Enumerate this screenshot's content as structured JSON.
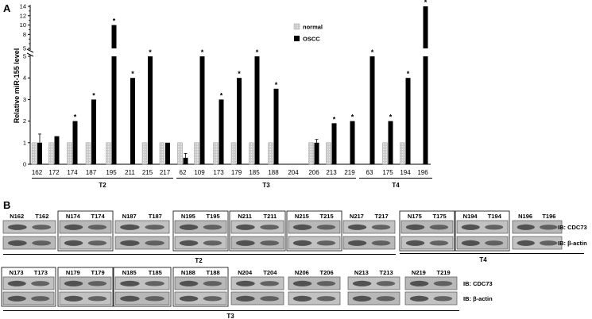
{
  "panel_a_label": "A",
  "panel_b_label": "B",
  "chart_data": {
    "type": "bar",
    "title": "",
    "ylabel": "Relative miR-155 level",
    "xlabel": "",
    "broken_axis": true,
    "y_lower_ticks": [
      0,
      1,
      2,
      3,
      4,
      5
    ],
    "y_upper_ticks": [
      5,
      8,
      10,
      12,
      14
    ],
    "legend": {
      "placement": "top-right",
      "entries": [
        "normal",
        "OSCC"
      ]
    },
    "colors": {
      "normal": "#d4d4d4",
      "OSCC": "#000000"
    },
    "categories": [
      "162",
      "172",
      "174",
      "187",
      "195",
      "211",
      "215",
      "217",
      "62",
      "109",
      "173",
      "179",
      "185",
      "188",
      "204",
      "206",
      "213",
      "219",
      "63",
      "175",
      "194",
      "196"
    ],
    "groups": [
      {
        "name": "T2",
        "from": 0,
        "to": 7
      },
      {
        "name": "T3",
        "from": 8,
        "to": 17
      },
      {
        "name": "T4",
        "from": 18,
        "to": 21
      }
    ],
    "series": [
      {
        "name": "normal",
        "values": [
          1,
          1,
          1,
          1,
          1,
          0,
          1,
          1,
          1,
          1,
          1,
          1,
          1,
          1,
          0,
          1,
          1,
          0,
          0,
          1,
          1,
          0
        ],
        "errors": [
          0,
          0,
          0,
          0,
          0,
          0,
          0,
          0,
          0,
          0,
          0,
          0,
          0,
          0,
          0,
          0,
          0,
          0,
          0,
          0,
          0,
          0
        ]
      },
      {
        "name": "OSCC",
        "values": [
          1,
          1.3,
          2,
          3,
          10,
          4,
          5,
          1,
          0.3,
          5,
          3,
          4,
          5,
          3.5,
          0,
          1,
          1.9,
          2,
          5,
          2,
          4,
          14
        ],
        "errors": [
          0.4,
          0,
          0,
          0,
          0,
          0,
          0,
          0,
          0.2,
          0,
          0,
          0,
          0,
          0,
          0,
          0.15,
          0,
          0,
          0,
          0,
          0,
          0
        ]
      }
    ],
    "significant": [
      false,
      false,
      true,
      true,
      true,
      true,
      true,
      false,
      false,
      true,
      true,
      true,
      true,
      true,
      false,
      false,
      true,
      true,
      true,
      true,
      true,
      true
    ],
    "significance_marker": "*"
  },
  "blots": {
    "row1": [
      {
        "samples": [
          "N162",
          "T162"
        ]
      },
      {
        "samples": [
          "N174",
          "T174"
        ]
      },
      {
        "samples": [
          "N187",
          "T187"
        ]
      },
      {
        "samples": [
          "N195",
          "T195"
        ]
      },
      {
        "samples": [
          "N211",
          "T211"
        ]
      },
      {
        "samples": [
          "N215",
          "T215"
        ]
      },
      {
        "samples": [
          "N217",
          "T217"
        ]
      },
      {
        "samples": [
          "N175",
          "T175"
        ]
      },
      {
        "samples": [
          "N194",
          "T194"
        ]
      },
      {
        "samples": [
          "N196",
          "T196"
        ]
      }
    ],
    "row1_groups": [
      {
        "name": "T2"
      },
      {
        "name": "T4"
      }
    ],
    "row2": [
      {
        "samples": [
          "N173",
          "T173"
        ]
      },
      {
        "samples": [
          "N179",
          "T179"
        ]
      },
      {
        "samples": [
          "N185",
          "T185"
        ]
      },
      {
        "samples": [
          "N188",
          "T188"
        ]
      },
      {
        "samples": [
          "N204",
          "T204"
        ]
      },
      {
        "samples": [
          "N206",
          "T206"
        ]
      },
      {
        "samples": [
          "N213",
          "T213"
        ]
      },
      {
        "samples": [
          "N219",
          "T219"
        ]
      }
    ],
    "row2_groups": [
      {
        "name": "T3"
      }
    ],
    "ib_cdc73": "IB: CDC73",
    "ib_actin": "IB: β-actin"
  }
}
